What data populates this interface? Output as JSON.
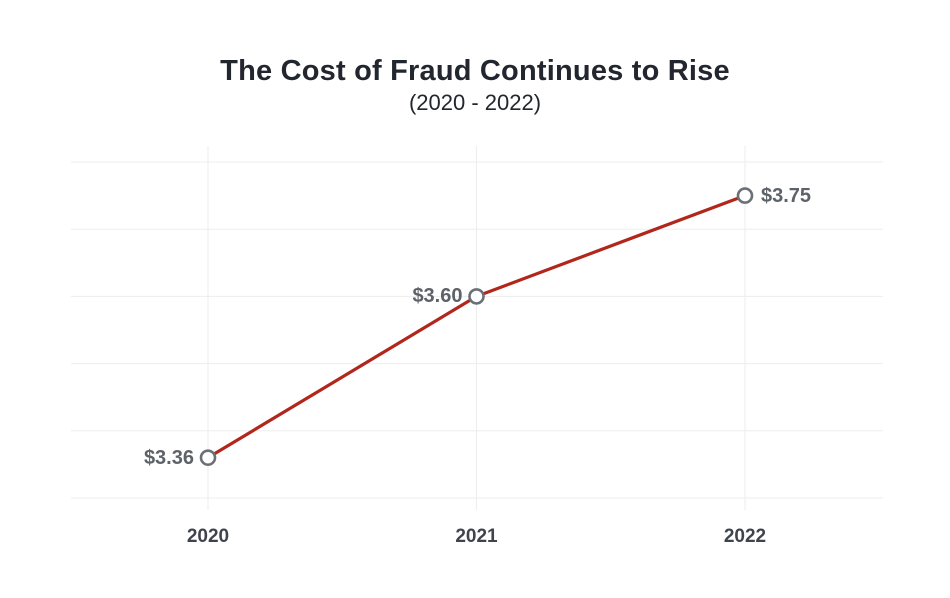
{
  "header": {
    "title": "The Cost of Fraud Continues to Rise",
    "subtitle": "(2020 - 2022)"
  },
  "chart_data": {
    "type": "line",
    "title": "The Cost of Fraud Continues to Rise",
    "subtitle": "(2020 - 2022)",
    "categories": [
      "2020",
      "2021",
      "2022"
    ],
    "values": [
      3.36,
      3.6,
      3.75
    ],
    "point_labels": [
      "$3.36",
      "$3.60",
      "$3.75"
    ],
    "point_label_side": [
      "left",
      "left",
      "right"
    ],
    "xlabel": "",
    "ylabel": "",
    "ylim": [
      3.3,
      3.8
    ],
    "y_grid_step": 0.1,
    "y_tick_labels_shown": false,
    "grid": "horizontal-and-vertical",
    "legend": "none",
    "colors": {
      "line": "#b1271c",
      "marker_stroke": "#6a7076",
      "marker_fill": "#ffffff",
      "gridline": "#ededed",
      "title": "#22262e",
      "point_label": "#5d6268",
      "axis_label": "#3f444c"
    }
  }
}
